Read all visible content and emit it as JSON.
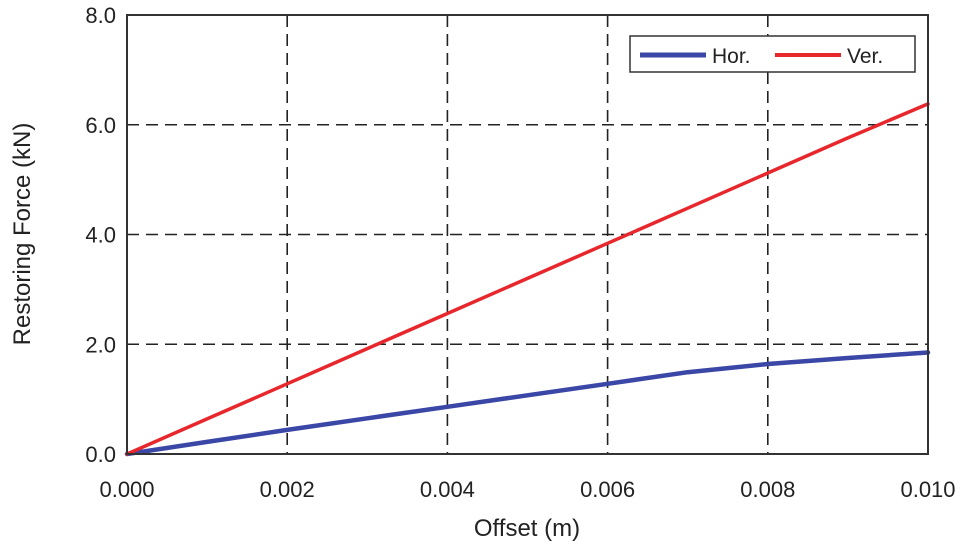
{
  "chart_data": {
    "type": "line",
    "title": "",
    "xlabel": "Offset (m)",
    "ylabel": "Restoring Force (kN)",
    "xlim": [
      0.0,
      0.01
    ],
    "ylim": [
      0.0,
      8.0
    ],
    "xticks": [
      0.0,
      0.002,
      0.004,
      0.006,
      0.008,
      0.01
    ],
    "yticks": [
      0.0,
      2.0,
      4.0,
      6.0,
      8.0
    ],
    "xtick_labels": [
      "0.000",
      "0.002",
      "0.004",
      "0.006",
      "0.008",
      "0.010"
    ],
    "ytick_labels": [
      "0.0",
      "2.0",
      "4.0",
      "6.0",
      "8.0"
    ],
    "grid": true,
    "legend_position": "top-right",
    "series": [
      {
        "name": "Hor.",
        "color": "#3a47a6",
        "x": [
          0.0,
          0.001,
          0.002,
          0.003,
          0.004,
          0.005,
          0.006,
          0.007,
          0.008,
          0.009,
          0.01
        ],
        "y": [
          0.0,
          0.22,
          0.44,
          0.65,
          0.86,
          1.07,
          1.28,
          1.49,
          1.64,
          1.75,
          1.85
        ]
      },
      {
        "name": "Ver.",
        "color": "#e8272d",
        "x": [
          0.0,
          0.001,
          0.002,
          0.003,
          0.004,
          0.005,
          0.006,
          0.007,
          0.008,
          0.009,
          0.01
        ],
        "y": [
          0.0,
          0.64,
          1.28,
          1.92,
          2.56,
          3.2,
          3.84,
          4.48,
          5.12,
          5.76,
          6.38
        ]
      }
    ]
  }
}
